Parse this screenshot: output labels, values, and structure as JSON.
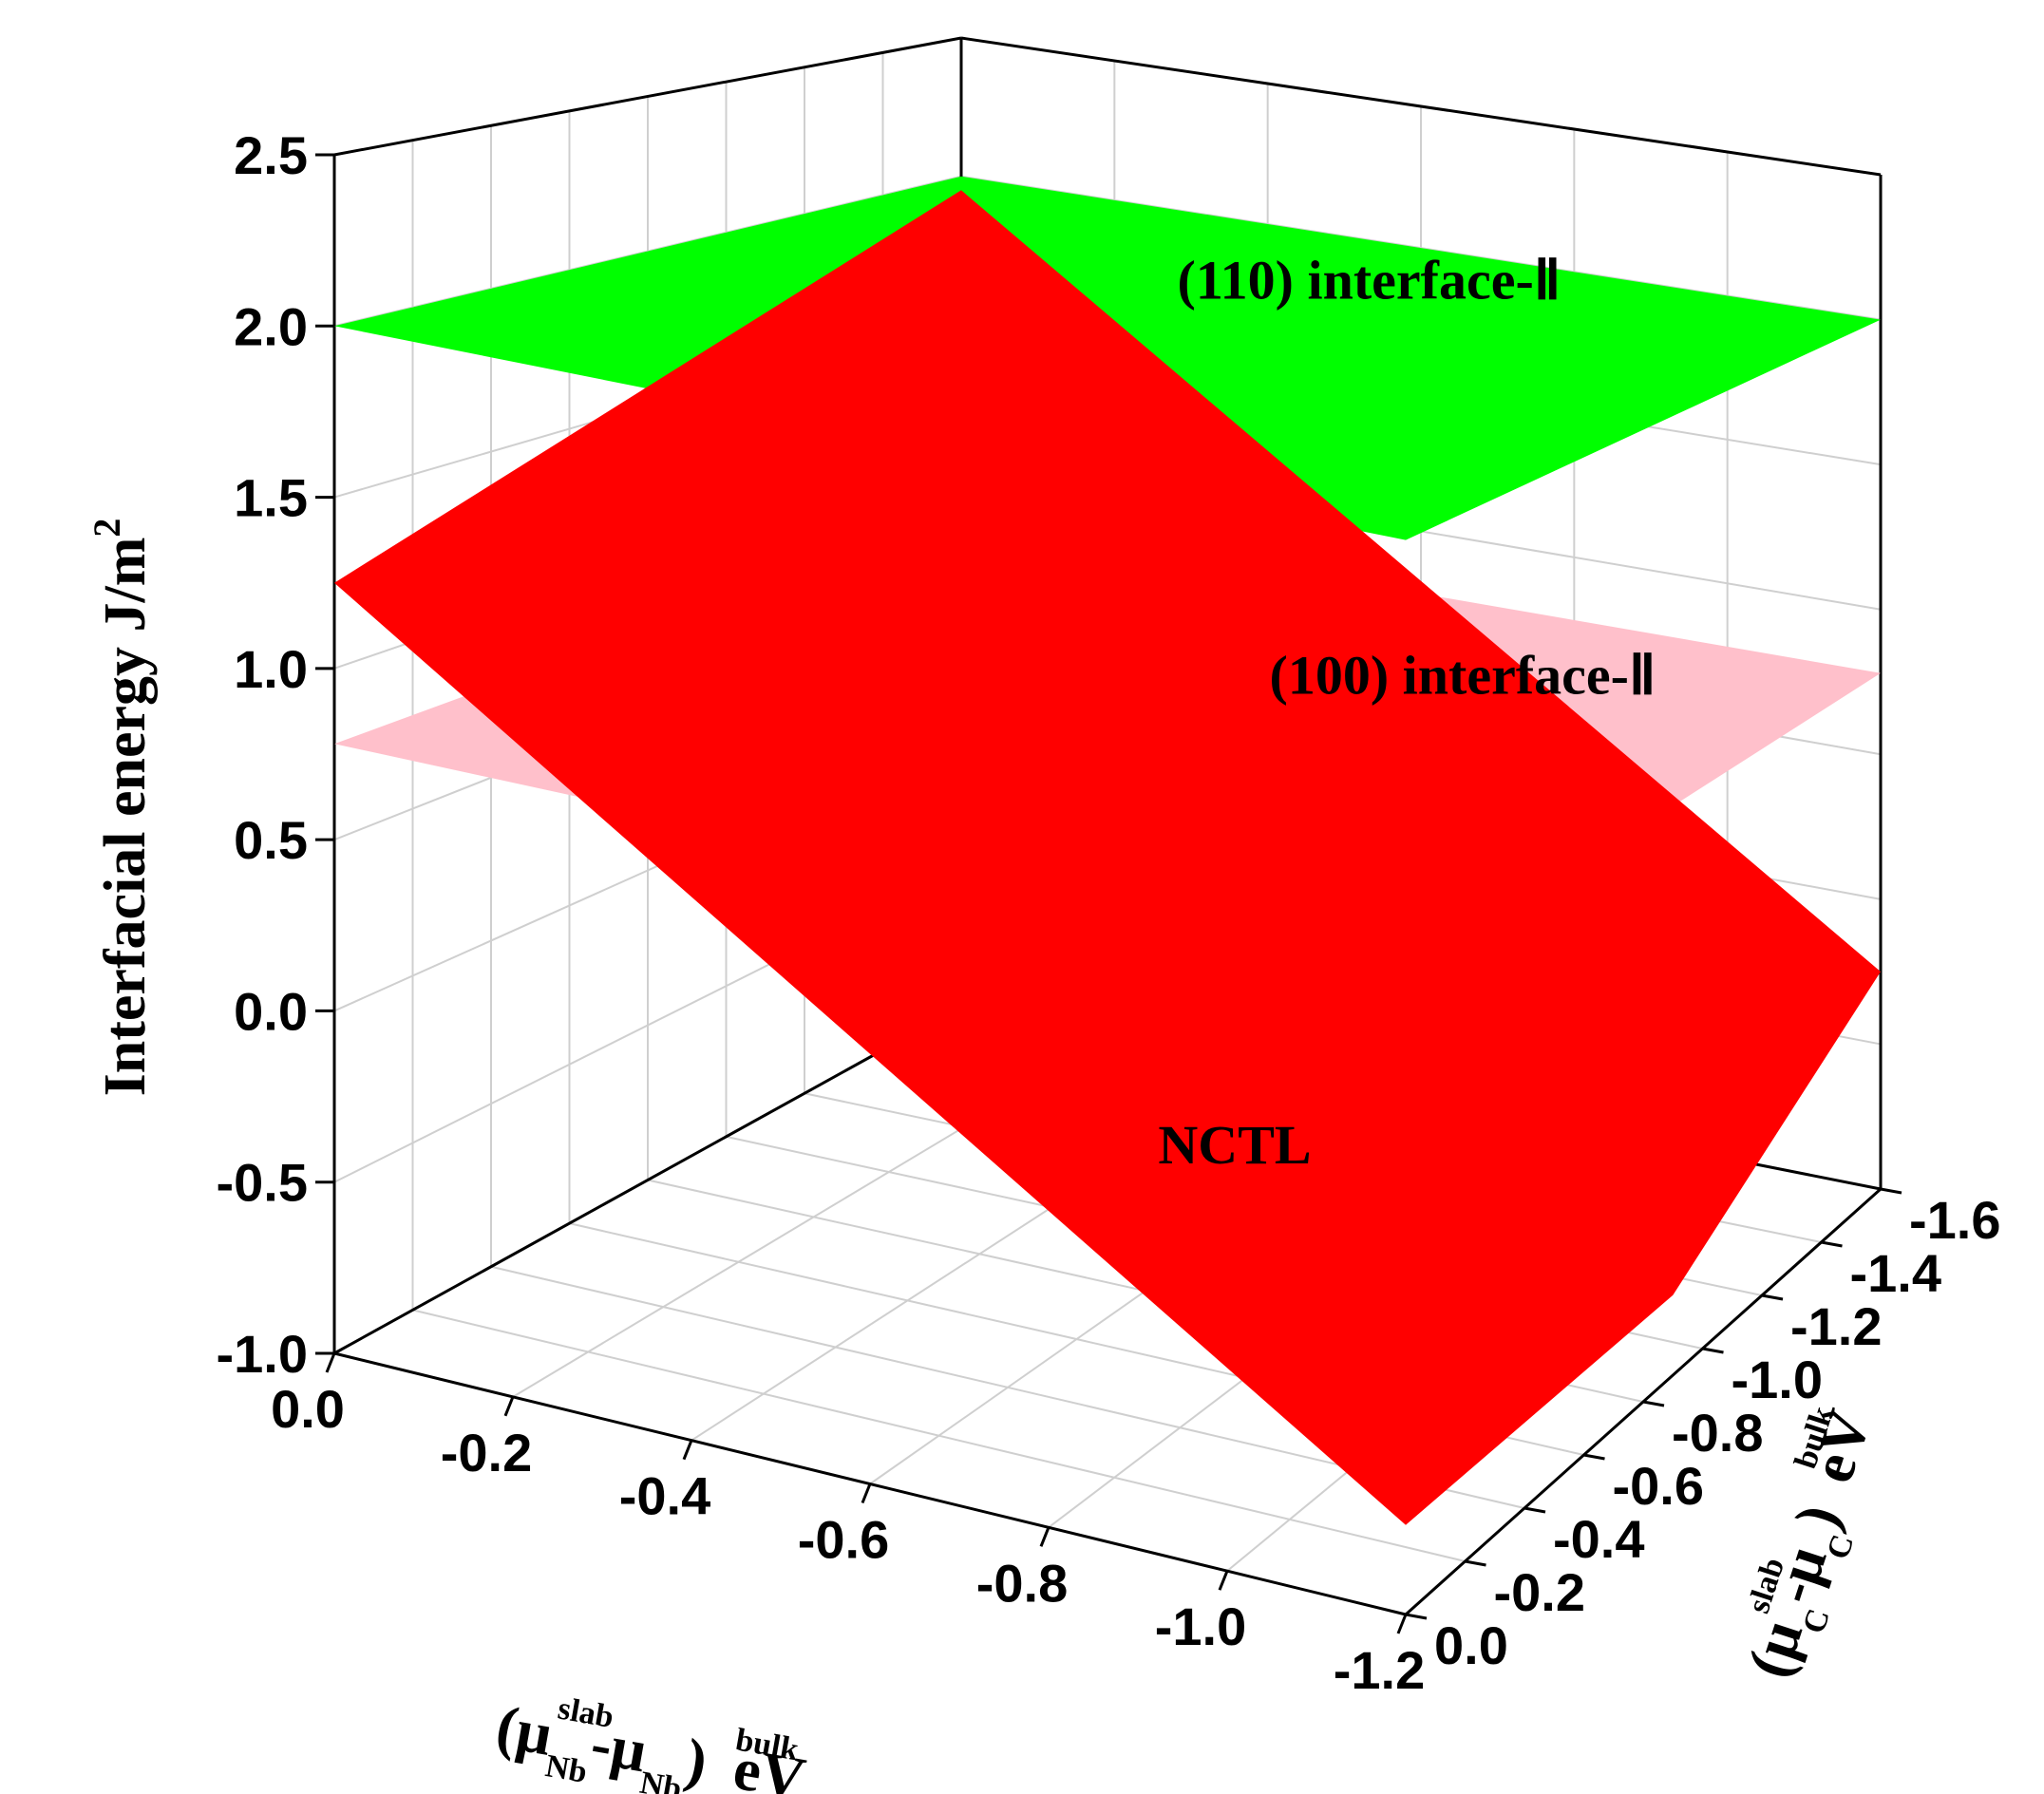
{
  "chart_data": {
    "type": "surface3d",
    "title": "",
    "xlabel": {
      "mu": "(μ",
      "sub1": "Nb",
      "sup1": "slab",
      "minus": "-μ",
      "sub2": "Nb",
      "sup2": "bulk",
      "close": ")",
      "unit": "eV"
    },
    "ylabel": {
      "mu": "(μ",
      "sub1": "C",
      "sup1": "slab",
      "minus": "-μ",
      "sub2": "C",
      "sup2": "bulk",
      "close": ")",
      "unit": "eV"
    },
    "zlabel": {
      "text": "Interfacial energy  J/m",
      "sup": "2"
    },
    "x_ticks": [
      "0.0",
      "-0.2",
      "-0.4",
      "-0.6",
      "-0.8",
      "-1.0",
      "-1.2"
    ],
    "x_tick_values": [
      0.0,
      -0.2,
      -0.4,
      -0.6,
      -0.8,
      -1.0,
      -1.2
    ],
    "y_ticks": [
      "0.0",
      "-0.2",
      "-0.4",
      "-0.6",
      "-0.8",
      "-1.0",
      "-1.2",
      "-1.4",
      "-1.6"
    ],
    "y_tick_values": [
      0.0,
      -0.2,
      -0.4,
      -0.6,
      -0.8,
      -1.0,
      -1.2,
      -1.4,
      -1.6
    ],
    "z_ticks": [
      "-1.0",
      "-0.5",
      "0.0",
      "0.5",
      "1.0",
      "1.5",
      "2.0",
      "2.5"
    ],
    "z_tick_values": [
      -1.0,
      -0.5,
      0.0,
      0.5,
      1.0,
      1.5,
      2.0,
      2.5
    ],
    "xlim": [
      0.0,
      -1.2
    ],
    "ylim": [
      0.0,
      -1.6
    ],
    "zlim": [
      -1.0,
      2.5
    ],
    "grid": true,
    "series": [
      {
        "name": "(110) interface-Ⅱ",
        "color": "#00ff00",
        "corners": [
          {
            "x": 0.0,
            "y": 0.0,
            "z": 2.0
          },
          {
            "x": 0.0,
            "y": -1.6,
            "z": 2.0
          },
          {
            "x": -1.2,
            "y": -1.6,
            "z": 2.0
          },
          {
            "x": -1.2,
            "y": 0.0,
            "z": 2.0
          }
        ]
      },
      {
        "name": "(100) interface-Ⅱ",
        "color": "#ffc0cb",
        "corners": [
          {
            "x": 0.0,
            "y": 0.0,
            "z": 0.78
          },
          {
            "x": 0.0,
            "y": -1.6,
            "z": 0.78
          },
          {
            "x": -1.2,
            "y": -1.6,
            "z": 0.78
          },
          {
            "x": -1.2,
            "y": 0.0,
            "z": 0.78
          }
        ]
      },
      {
        "name": "NCTL",
        "color": "#ff0000",
        "corners": [
          {
            "x": 0.0,
            "y": 0.0,
            "z": 1.25
          },
          {
            "x": 0.0,
            "y": -1.6,
            "z": 1.95
          },
          {
            "x": -1.2,
            "y": -1.6,
            "z": -0.25
          },
          {
            "x": -1.2,
            "y": -0.9,
            "z": -0.75
          },
          {
            "x": -1.2,
            "y": 0.0,
            "z": -0.75
          }
        ]
      }
    ]
  }
}
